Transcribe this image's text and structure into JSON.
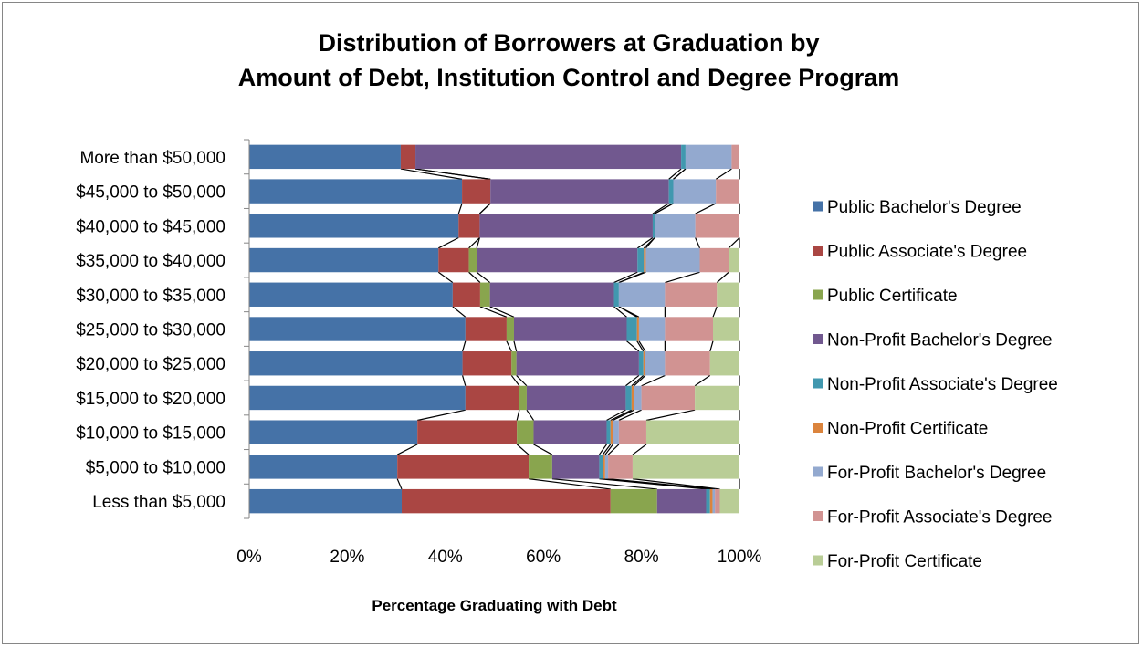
{
  "chart_data": {
    "type": "bar",
    "orientation": "horizontal",
    "stacked": "100%",
    "title_lines": [
      "Distribution of Borrowers at Graduation by",
      "Amount of Debt, Institution Control and Degree Program"
    ],
    "xlabel": "Percentage Graduating with Debt",
    "ylabel": "",
    "xlim": [
      0,
      100
    ],
    "x_ticks": [
      "0%",
      "20%",
      "40%",
      "60%",
      "80%",
      "100%"
    ],
    "categories": [
      "Less than $5,000",
      "$5,000 to $10,000",
      "$10,000 to $15,000",
      "$15,000 to $20,000",
      "$20,000 to $25,000",
      "$25,000 to $30,000",
      "$30,000 to $35,000",
      "$35,000 to $40,000",
      "$40,000 to $45,000",
      "$45,000 to $50,000",
      "More than $50,000"
    ],
    "category_order": "bottom-to-top",
    "series_lines": true,
    "grid": false,
    "legend_position": "right",
    "series": [
      {
        "name": "Public Bachelor's Degree",
        "color": "#4572A7",
        "values": [
          31.1,
          30.2,
          34.3,
          44.1,
          43.5,
          44.1,
          41.5,
          38.6,
          42.7,
          43.4,
          30.9
        ]
      },
      {
        "name": "Public Associate's Degree",
        "color": "#AA4643",
        "values": [
          42.6,
          26.8,
          20.3,
          11.0,
          10.0,
          8.4,
          5.6,
          6.2,
          4.3,
          5.8,
          3.0
        ]
      },
      {
        "name": "Public Certificate",
        "color": "#89A54E",
        "values": [
          9.5,
          4.8,
          3.4,
          1.5,
          1.0,
          1.5,
          2.0,
          1.6,
          0.0,
          0.0,
          0.0
        ]
      },
      {
        "name": "Non-Profit Bachelor's Degree",
        "color": "#71588F",
        "values": [
          10.0,
          9.6,
          14.9,
          20.2,
          25.0,
          23.0,
          25.3,
          32.8,
          35.3,
          36.4,
          54.2
        ]
      },
      {
        "name": "Non-Profit Associate's Degree",
        "color": "#4198AF",
        "values": [
          0.8,
          0.7,
          0.8,
          1.2,
          0.9,
          2.1,
          1.0,
          1.3,
          0.4,
          0.9,
          0.9
        ]
      },
      {
        "name": "Non-Profit Certificate",
        "color": "#DB843D",
        "values": [
          0.5,
          0.5,
          0.5,
          0.5,
          0.4,
          0.4,
          0.0,
          0.4,
          0.0,
          0.0,
          0.0
        ]
      },
      {
        "name": "For-Profit Bachelor's Degree",
        "color": "#93A9CF",
        "values": [
          0.5,
          0.6,
          1.2,
          1.5,
          4.0,
          5.3,
          9.4,
          11.0,
          8.3,
          8.7,
          9.4
        ]
      },
      {
        "name": "For-Profit Associate's Degree",
        "color": "#D19392",
        "values": [
          1.0,
          5.0,
          5.6,
          10.9,
          9.2,
          9.8,
          10.6,
          5.9,
          9.0,
          4.8,
          1.6
        ]
      },
      {
        "name": "For-Profit Certificate",
        "color": "#B9CD96",
        "values": [
          4.0,
          21.8,
          19.0,
          9.1,
          6.0,
          5.4,
          4.6,
          2.2,
          0.0,
          0.0,
          0.0
        ]
      }
    ]
  }
}
